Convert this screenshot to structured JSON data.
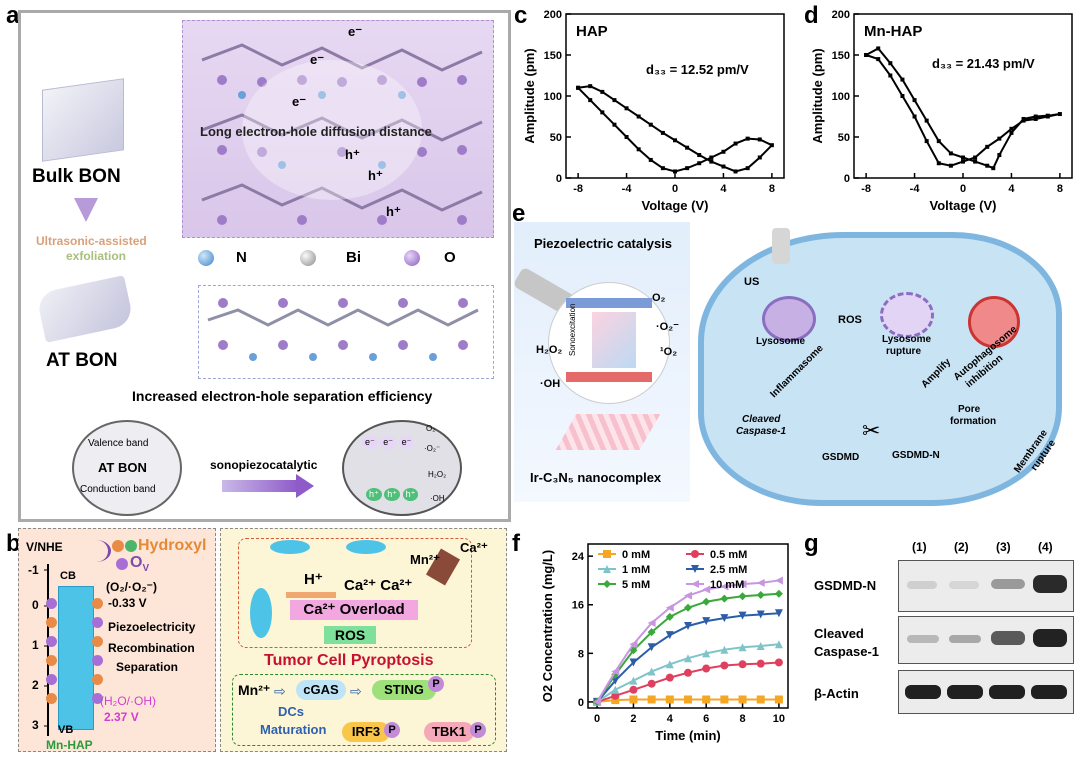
{
  "panels": {
    "a": "a",
    "b": "b",
    "c": "c",
    "d": "d",
    "e": "e",
    "f": "f",
    "g": "g"
  },
  "panel_a": {
    "bulk": "Bulk BON",
    "exfoliation": [
      "Ultrasonic-assisted",
      "exfoliation"
    ],
    "at": "AT BON",
    "e_minus": "e⁻",
    "h_plus": "h⁺",
    "long_diffusion": "Long electron-hole diffusion distance",
    "legend": [
      "N",
      "Bi",
      "O"
    ],
    "increased": "Increased electron-hole separation efficiency",
    "valence": "Valence band",
    "at_bon": "AT BON",
    "conduction": "Conduction band",
    "sono": "sonopiezocatalytic",
    "o2": "O₂",
    "h2o2": "H₂O₂",
    "o2minus": "·O₂⁻",
    "oh": "·OH"
  },
  "panel_b": {
    "vnhe": "V/NHE",
    "ticks": [
      "-1",
      "0",
      "1",
      "2",
      "3"
    ],
    "cb": "CB",
    "vb": "VB",
    "o2pair": "(O₂/·O₂⁻)",
    "v033": "-0.33 V",
    "hydroxyl": "Hydroxyl",
    "ov": "O",
    "ov_sub": "V",
    "piezo": "Piezoelectricity",
    "recomb": "Recombination",
    "separation": "Separation",
    "h2o_pair": "(H₂O/·OH)",
    "v237": "2.37 V",
    "mnhap": "Mn-HAP",
    "mn2": "Mn²⁺",
    "ca2": "Ca²⁺",
    "hplus": "H⁺",
    "ca_ca": "Ca²⁺ Ca²⁺",
    "overload": "Ca²⁺ Overload",
    "ros": "ROS",
    "pyroptosis": "Tumor Cell Pyroptosis",
    "mn_path": "Mn²⁺",
    "cgas": "cGAS",
    "sting": "STING",
    "p": "P",
    "dcs": "DCs",
    "maturation": "Maturation",
    "irf3": "IRF3",
    "tbk1": "TBK1"
  },
  "panel_c": {
    "title": "HAP",
    "d33": "d₃₃ = 12.52 pm/V"
  },
  "panel_d": {
    "title": "Mn-HAP",
    "d33": "d₃₃ = 21.43 pm/V"
  },
  "panel_e": {
    "piezo_title": "Piezoelectric catalysis",
    "o2": "O₂",
    "o2m": "·O₂⁻",
    "singlet": "¹O₂",
    "h2o2": "H₂O₂",
    "oh": "·OH",
    "sonoexc": "Sonoexcitation",
    "nano": "Ir-C₃N₅ nanocomplex",
    "us": "US",
    "ros": "ROS",
    "lysosome": "Lysosome",
    "lys_rupture": [
      "Lysosome",
      "rupture"
    ],
    "autophago": [
      "Autophagosome",
      "inhibition"
    ],
    "inflammasome": "Inflammasome",
    "amplify": "Amplify",
    "cleaved": [
      "Cleaved",
      "Caspase-1"
    ],
    "gsdmd": "GSDMD",
    "gsdmdn": "GSDMD-N",
    "pore": [
      "Pore",
      "formation"
    ],
    "membrane": [
      "Membrane",
      "rupture"
    ]
  },
  "panel_g": {
    "lanes": [
      "(1)",
      "(2)",
      "(3)",
      "(4)"
    ],
    "rows": [
      "GSDMD-N",
      "Cleaved",
      "Caspase-1",
      "β-Actin"
    ]
  },
  "chart_data": [
    {
      "type": "line",
      "panel": "c",
      "title": "HAP",
      "xlabel": "Voltage (V)",
      "ylabel": "Amplitude (pm)",
      "xlim": [
        -9,
        9
      ],
      "ylim": [
        0,
        200
      ],
      "xticks": [
        -8,
        -4,
        0,
        4,
        8
      ],
      "yticks": [
        0,
        50,
        100,
        150,
        200
      ],
      "annotation": "d33 = 12.52 pm/V",
      "series": [
        {
          "x": [
            -8,
            -7,
            -6,
            -5,
            -4,
            -3,
            -2,
            -1,
            0,
            1,
            2,
            3,
            4,
            5,
            6,
            7,
            8,
            7,
            6,
            5,
            4,
            3,
            2,
            1,
            0,
            -1,
            -2,
            -3,
            -4,
            -5,
            -6,
            -7,
            -8
          ],
          "y": [
            110,
            112,
            105,
            95,
            85,
            75,
            65,
            55,
            46,
            37,
            28,
            20,
            14,
            8,
            12,
            25,
            40,
            47,
            48,
            42,
            32,
            25,
            18,
            12,
            8,
            12,
            22,
            35,
            50,
            65,
            80,
            95,
            110
          ]
        }
      ]
    },
    {
      "type": "line",
      "panel": "d",
      "title": "Mn-HAP",
      "xlabel": "Voltage (V)",
      "ylabel": "Amplitude (pm)",
      "xlim": [
        -9,
        9
      ],
      "ylim": [
        0,
        200
      ],
      "xticks": [
        -8,
        -4,
        0,
        4,
        8
      ],
      "yticks": [
        0,
        50,
        100,
        150,
        200
      ],
      "annotation": "d33 = 21.43 pm/V",
      "series": [
        {
          "x": [
            -8,
            -7,
            -6,
            -5,
            -4,
            -3,
            -2,
            -1,
            0,
            1,
            2,
            2.5,
            3,
            4,
            5,
            6,
            7,
            8,
            7,
            6,
            5,
            4,
            3,
            2,
            1,
            0,
            -1,
            -2,
            -3,
            -4,
            -5,
            -6,
            -7,
            -8
          ],
          "y": [
            150,
            158,
            140,
            120,
            95,
            70,
            45,
            30,
            25,
            20,
            15,
            12,
            28,
            55,
            72,
            75,
            76,
            78,
            75,
            72,
            70,
            60,
            48,
            38,
            25,
            20,
            15,
            18,
            45,
            75,
            100,
            125,
            145,
            150
          ]
        }
      ]
    },
    {
      "type": "line",
      "panel": "f",
      "xlabel": "Time (min)",
      "ylabel": "O2 Concentration (mg/L)",
      "xlim": [
        -0.5,
        10.5
      ],
      "ylim": [
        -1,
        26
      ],
      "xticks": [
        0,
        2,
        4,
        6,
        8,
        10
      ],
      "yticks": [
        0,
        8,
        16,
        24
      ],
      "x": [
        0,
        1,
        2,
        3,
        4,
        5,
        6,
        7,
        8,
        9,
        10
      ],
      "legend_position": "top-left",
      "series": [
        {
          "name": "0 mM",
          "color": "#f5a623",
          "marker": "square",
          "values": [
            0,
            0.3,
            0.4,
            0.4,
            0.4,
            0.4,
            0.4,
            0.4,
            0.4,
            0.4,
            0.4
          ]
        },
        {
          "name": "0.5 mM",
          "color": "#e04060",
          "marker": "circle",
          "values": [
            0,
            1.0,
            2.0,
            3.0,
            4.0,
            4.8,
            5.5,
            6.0,
            6.2,
            6.3,
            6.5
          ]
        },
        {
          "name": "1 mM",
          "color": "#7ec4c8",
          "marker": "triangle",
          "values": [
            0,
            2.0,
            3.5,
            5.0,
            6.2,
            7.2,
            8.0,
            8.6,
            9.0,
            9.2,
            9.5
          ]
        },
        {
          "name": "2.5 mM",
          "color": "#2c5ea8",
          "marker": "triangle-down",
          "values": [
            0,
            3.5,
            6.5,
            9.0,
            11.0,
            12.5,
            13.3,
            13.8,
            14.2,
            14.4,
            14.6
          ]
        },
        {
          "name": "5 mM",
          "color": "#3aa83a",
          "marker": "diamond",
          "values": [
            0,
            4.5,
            8.5,
            11.5,
            14.0,
            15.5,
            16.5,
            17.0,
            17.4,
            17.6,
            17.8
          ]
        },
        {
          "name": "10 mM",
          "color": "#c896e0",
          "marker": "triangle-left",
          "values": [
            0,
            5.0,
            9.5,
            13.0,
            15.5,
            17.5,
            18.5,
            19.0,
            19.4,
            19.6,
            20.0
          ]
        }
      ]
    }
  ],
  "colors": {
    "purple": "#b9a3d8",
    "lilac_bg": "#e9dcf2",
    "green_label": "#2a9a3a",
    "red": "#c8102e",
    "blue": "#2f5fb0",
    "cell": "#bfdcf0"
  }
}
